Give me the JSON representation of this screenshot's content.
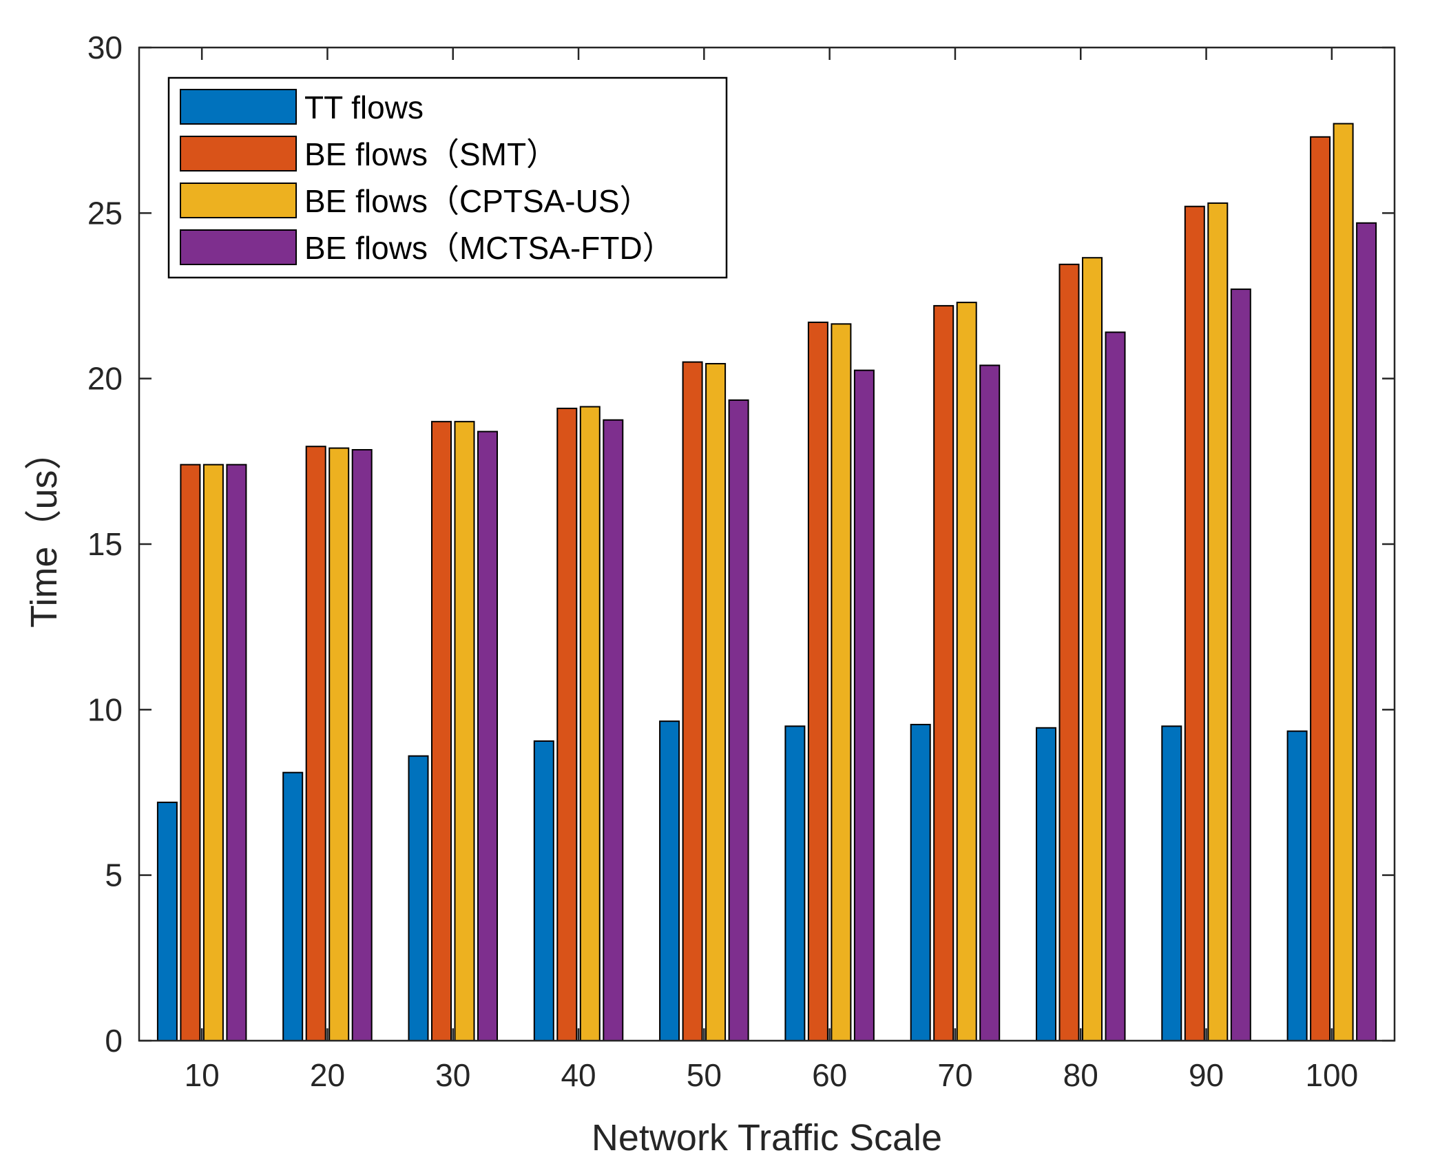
{
  "chart_data": {
    "type": "bar",
    "title": "",
    "xlabel": "Network Traffic Scale",
    "ylabel": "Time（us）",
    "categories": [
      "10",
      "20",
      "30",
      "40",
      "50",
      "60",
      "70",
      "80",
      "90",
      "100"
    ],
    "ylim": [
      0,
      30
    ],
    "yticks": [
      "0",
      "5",
      "10",
      "15",
      "20",
      "25",
      "30"
    ],
    "legend_position": "top-left",
    "grid": false,
    "series": [
      {
        "name": "TT flows",
        "color": "#0072BD",
        "values": [
          7.2,
          8.1,
          8.6,
          9.05,
          9.65,
          9.5,
          9.55,
          9.45,
          9.5,
          9.35
        ]
      },
      {
        "name": "BE flows（SMT）",
        "color": "#D95319",
        "values": [
          17.4,
          17.95,
          18.7,
          19.1,
          20.5,
          21.7,
          22.2,
          23.45,
          25.2,
          27.3
        ]
      },
      {
        "name": "BE flows（CPTSA-US）",
        "color": "#EDB120",
        "values": [
          17.4,
          17.9,
          18.7,
          19.15,
          20.45,
          21.65,
          22.3,
          23.65,
          25.3,
          27.7
        ]
      },
      {
        "name": "BE flows（MCTSA-FTD）",
        "color": "#7E2F8E",
        "values": [
          17.4,
          17.85,
          18.4,
          18.75,
          19.35,
          20.25,
          20.4,
          21.4,
          22.7,
          24.7
        ]
      }
    ]
  }
}
